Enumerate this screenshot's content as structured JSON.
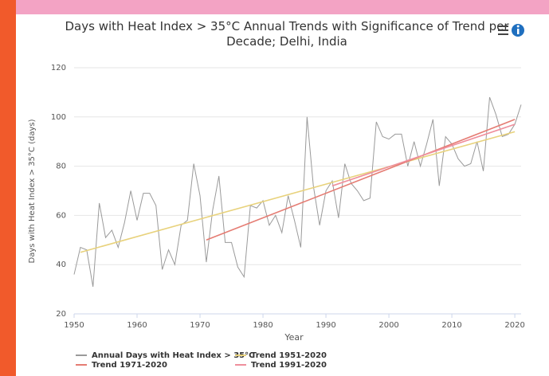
{
  "chart_data": {
    "type": "line",
    "title": "Days with Heat Index > 35°C Annual Trends with Significance of Trend per Decade; Delhi, India",
    "xlabel": "Year",
    "ylabel": "Days with Heat Index > 35°C (days)",
    "xlim": [
      1950,
      2021
    ],
    "ylim": [
      20,
      120
    ],
    "xticks": [
      1950,
      1960,
      1970,
      1980,
      1990,
      2000,
      2010,
      2020
    ],
    "yticks": [
      20,
      40,
      60,
      80,
      100,
      120
    ],
    "grid": true,
    "legend": "bottom",
    "series": [
      {
        "name": "Annual Days with Heat Index > 35°C",
        "color": "#9a9a9a",
        "x": [
          1950,
          1951,
          1952,
          1953,
          1954,
          1955,
          1956,
          1957,
          1958,
          1959,
          1960,
          1961,
          1962,
          1963,
          1964,
          1965,
          1966,
          1967,
          1968,
          1969,
          1970,
          1971,
          1972,
          1973,
          1974,
          1975,
          1976,
          1977,
          1978,
          1979,
          1980,
          1981,
          1982,
          1983,
          1984,
          1985,
          1986,
          1987,
          1988,
          1989,
          1990,
          1991,
          1992,
          1993,
          1994,
          1995,
          1996,
          1997,
          1998,
          1999,
          2000,
          2001,
          2002,
          2003,
          2004,
          2005,
          2006,
          2007,
          2008,
          2009,
          2010,
          2011,
          2012,
          2013,
          2014,
          2015,
          2016,
          2017,
          2018,
          2019,
          2020,
          2021
        ],
        "values": [
          36,
          47,
          46,
          31,
          65,
          51,
          54,
          47,
          57,
          70,
          58,
          69,
          69,
          64,
          38,
          46,
          40,
          56,
          58,
          81,
          68,
          41,
          62,
          76,
          49,
          49,
          39,
          35,
          64,
          63,
          66,
          56,
          60,
          53,
          68,
          58,
          47,
          100,
          72,
          56,
          70,
          74,
          59,
          81,
          73,
          70,
          66,
          67,
          98,
          92,
          91,
          93,
          93,
          80,
          90,
          80,
          89,
          99,
          72,
          92,
          89,
          83,
          80,
          81,
          90,
          78,
          108,
          101,
          92,
          93,
          97,
          105
        ]
      },
      {
        "name": "Trend 1951-2020",
        "color": "#e8d27c",
        "x": [
          1951,
          2020
        ],
        "values": [
          45,
          94
        ]
      },
      {
        "name": "Trend 1971-2020",
        "color": "#e57c73",
        "x": [
          1971,
          2020
        ],
        "values": [
          50,
          99
        ]
      },
      {
        "name": "Trend 1991-2020",
        "color": "#ef8f9c",
        "x": [
          1991,
          2020
        ],
        "values": [
          72,
          97
        ]
      }
    ]
  }
}
